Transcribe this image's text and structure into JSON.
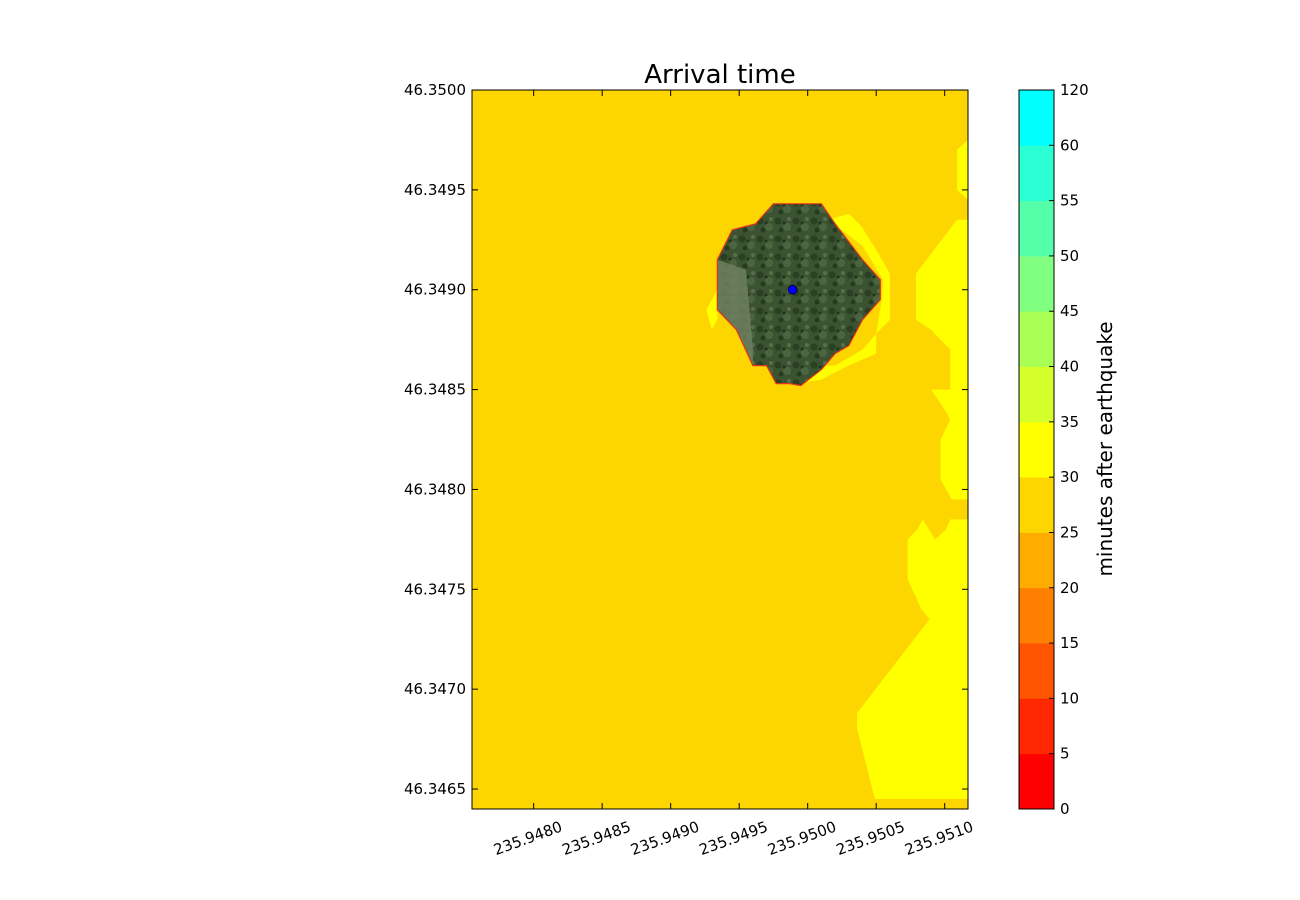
{
  "chart_data": {
    "type": "contour-map",
    "title": "Arrival time",
    "xlabel": "",
    "ylabel": "",
    "xlim": [
      235.94755,
      235.95117
    ],
    "ylim": [
      46.3464,
      46.35
    ],
    "x_ticks": [
      "235.9480",
      "235.9485",
      "235.9490",
      "235.9495",
      "235.9500",
      "235.9505",
      "235.9510"
    ],
    "x_tick_values": [
      235.948,
      235.9485,
      235.949,
      235.9495,
      235.95,
      235.9505,
      235.951
    ],
    "y_ticks": [
      "46.3465",
      "46.3470",
      "46.3475",
      "46.3480",
      "46.3485",
      "46.3490",
      "46.3495",
      "46.3500"
    ],
    "y_tick_values": [
      46.3465,
      46.347,
      46.3475,
      46.348,
      46.3485,
      46.349,
      46.3495,
      46.35
    ],
    "background_level": {
      "range": [
        25,
        30
      ],
      "color": "#fdd500"
    },
    "regions": [
      {
        "name": "east band",
        "range": [
          30,
          35
        ],
        "color": "#ffff00",
        "polygon": [
          [
            235.95117,
            46.34975
          ],
          [
            235.95109,
            46.3497
          ],
          [
            235.95109,
            46.3495
          ],
          [
            235.95117,
            46.34945
          ],
          [
            235.95117,
            46.34935
          ],
          [
            235.95109,
            46.34935
          ],
          [
            235.95079,
            46.34908
          ],
          [
            235.95079,
            46.34885
          ],
          [
            235.9509,
            46.3488
          ],
          [
            235.95104,
            46.3487
          ],
          [
            235.95104,
            46.3485
          ],
          [
            235.95095,
            46.3485
          ],
          [
            235.9509,
            46.3485
          ],
          [
            235.951,
            46.3484
          ],
          [
            235.95104,
            46.34835
          ],
          [
            235.95097,
            46.34825
          ],
          [
            235.95097,
            46.34815
          ],
          [
            235.95097,
            46.34805
          ],
          [
            235.95105,
            46.34795
          ],
          [
            235.95117,
            46.34795
          ],
          [
            235.95117,
            46.34785
          ],
          [
            235.95104,
            46.34785
          ],
          [
            235.95101,
            46.3478
          ],
          [
            235.95093,
            46.34775
          ],
          [
            235.95084,
            46.34785
          ],
          [
            235.9508,
            46.3478
          ],
          [
            235.95073,
            46.34775
          ],
          [
            235.95073,
            46.34755
          ],
          [
            235.95083,
            46.3474
          ],
          [
            235.95089,
            46.34735
          ],
          [
            235.95072,
            46.3472
          ],
          [
            235.95036,
            46.34688
          ],
          [
            235.95036,
            46.3468
          ],
          [
            235.95038,
            46.34675
          ],
          [
            235.95049,
            46.34645
          ],
          [
            235.95117,
            46.34645
          ]
        ]
      },
      {
        "name": "rim around source",
        "range": [
          30,
          35
        ],
        "color": "#ffff00",
        "polygon": [
          [
            235.95015,
            46.34935
          ],
          [
            235.9503,
            46.34938
          ],
          [
            235.95039,
            46.34932
          ],
          [
            235.9505,
            46.3492
          ],
          [
            235.9506,
            46.34908
          ],
          [
            235.9506,
            46.34885
          ],
          [
            235.9505,
            46.34878
          ],
          [
            235.9505,
            46.34868
          ],
          [
            235.9503,
            46.34862
          ],
          [
            235.95024,
            46.3486
          ],
          [
            235.9501,
            46.34855
          ],
          [
            235.9499,
            46.34853
          ],
          [
            235.94987,
            46.34862
          ],
          [
            235.9502,
            46.34862
          ],
          [
            235.9504,
            46.3487
          ],
          [
            235.9505,
            46.34878
          ],
          [
            235.95054,
            46.34895
          ],
          [
            235.95055,
            46.34905
          ],
          [
            235.9504,
            46.34922
          ]
        ]
      },
      {
        "name": "west notch",
        "range": [
          30,
          35
        ],
        "color": "#ffff00",
        "polygon": [
          [
            235.94934,
            46.349
          ],
          [
            235.94926,
            46.3489
          ],
          [
            235.9493,
            46.3488
          ],
          [
            235.94934,
            46.34885
          ]
        ]
      }
    ],
    "inundated_area": {
      "fill": "satellite imagery",
      "edge_color": "#e0321e",
      "polygon": [
        [
          235.94975,
          46.34943
        ],
        [
          235.9501,
          46.34943
        ],
        [
          235.9502,
          46.34933
        ],
        [
          235.9504,
          46.34915
        ],
        [
          235.95053,
          46.34905
        ],
        [
          235.95053,
          46.34895
        ],
        [
          235.9504,
          46.34885
        ],
        [
          235.9503,
          46.34872
        ],
        [
          235.9502,
          46.34868
        ],
        [
          235.9501,
          46.3486
        ],
        [
          235.94995,
          46.34852
        ],
        [
          235.94987,
          46.34853
        ],
        [
          235.94977,
          46.34853
        ],
        [
          235.9497,
          46.34862
        ],
        [
          235.9496,
          46.34862
        ],
        [
          235.94948,
          46.3488
        ],
        [
          235.94934,
          46.3489
        ],
        [
          235.94934,
          46.34915
        ],
        [
          235.94945,
          46.3493
        ],
        [
          235.94962,
          46.34933
        ]
      ]
    },
    "source_marker": {
      "x": 235.94989,
      "y": 46.349,
      "color": "#0000ff"
    },
    "colorbar": {
      "label": "minutes after earthquake",
      "tick_labels": [
        "0",
        "5",
        "10",
        "15",
        "20",
        "25",
        "30",
        "35",
        "40",
        "45",
        "50",
        "55",
        "60",
        "120"
      ],
      "levels": [
        {
          "range": [
            0,
            5
          ],
          "color": "#ff0000"
        },
        {
          "range": [
            5,
            10
          ],
          "color": "#ff2800"
        },
        {
          "range": [
            10,
            15
          ],
          "color": "#ff5500"
        },
        {
          "range": [
            15,
            20
          ],
          "color": "#ff8000"
        },
        {
          "range": [
            20,
            25
          ],
          "color": "#ffab00"
        },
        {
          "range": [
            25,
            30
          ],
          "color": "#fdd500"
        },
        {
          "range": [
            30,
            35
          ],
          "color": "#ffff00"
        },
        {
          "range": [
            35,
            40
          ],
          "color": "#d4ff2b"
        },
        {
          "range": [
            40,
            45
          ],
          "color": "#aaff55"
        },
        {
          "range": [
            45,
            50
          ],
          "color": "#80ff80"
        },
        {
          "range": [
            50,
            55
          ],
          "color": "#55ffaa"
        },
        {
          "range": [
            55,
            60
          ],
          "color": "#2bffd4"
        },
        {
          "range": [
            60,
            120
          ],
          "color": "#00ffff"
        }
      ]
    }
  }
}
